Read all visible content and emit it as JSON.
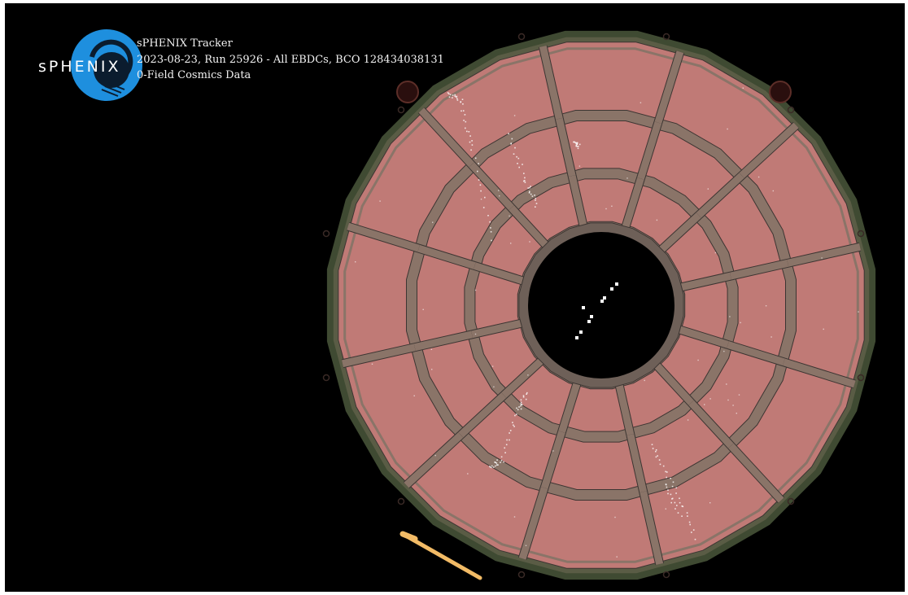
{
  "logo": {
    "text": "sPHENIX",
    "colors": {
      "blue": "#1e8fde",
      "dark": "#0b1c2e",
      "text": "#ffffff"
    }
  },
  "caption": {
    "line1": "sPHENIX Tracker",
    "line2": "2023-08-23, Run 25926 - All EBDCs, BCO 128434038131",
    "line3": "0-Field Cosmics Data"
  },
  "detector": {
    "sectors_per_ring": 12,
    "rings": 3,
    "colors": {
      "background": "#000000",
      "module": "#c07a76",
      "frame": "#8a7468",
      "frame_edge": "#3c3532",
      "outer_rim": "#3f4a32",
      "hits": "#ffffff",
      "track": "#ffffff",
      "beam_pipe_marker": "#f2bb66"
    }
  }
}
